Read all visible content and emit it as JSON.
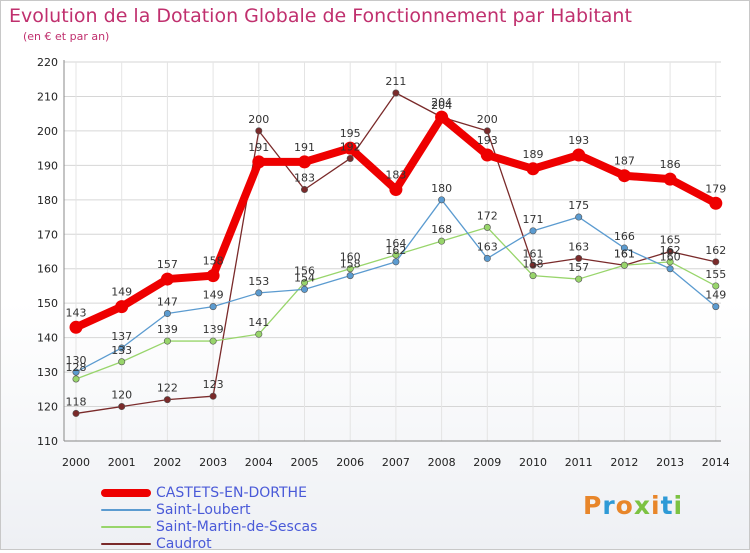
{
  "header": {
    "title": "Evolution de la Dotation Globale de Fonctionnement par Habitant",
    "subtitle": "(en € et par an)"
  },
  "brand": {
    "logo_text": "Proxiti",
    "logo_colors": [
      "#e8862a",
      "#2e9ad6",
      "#e8862a",
      "#7cc242",
      "#e8862a",
      "#2e9ad6",
      "#7cc242"
    ]
  },
  "chart_data": {
    "type": "line",
    "title": "Evolution de la Dotation Globale de Fonctionnement par Habitant",
    "subtitle": "(en € et par an)",
    "xlabel": "",
    "ylabel": "",
    "x": [
      "2000",
      "2001",
      "2002",
      "2003",
      "2004",
      "2005",
      "2006",
      "2007",
      "2008",
      "2009",
      "2010",
      "2011",
      "2012",
      "2013",
      "2014"
    ],
    "ylim": [
      110,
      220
    ],
    "yticks": [
      110,
      120,
      130,
      140,
      150,
      160,
      170,
      180,
      190,
      200,
      210,
      220
    ],
    "grid": true,
    "legend_position": "bottom-left",
    "series": [
      {
        "name": "CASTETS-EN-DORTHE",
        "color": "#ee0000",
        "values": [
          143,
          149,
          157,
          158,
          191,
          191,
          195,
          183,
          204,
          193,
          189,
          193,
          187,
          186,
          179
        ]
      },
      {
        "name": "Saint-Loubert",
        "color": "#5b9bd0",
        "values": [
          130,
          137,
          147,
          149,
          153,
          154,
          158,
          162,
          180,
          163,
          171,
          175,
          166,
          160,
          149
        ]
      },
      {
        "name": "Saint-Martin-de-Sescas",
        "color": "#98d56b",
        "values": [
          128,
          133,
          139,
          139,
          141,
          156,
          160,
          164,
          168,
          172,
          158,
          157,
          161,
          162,
          155
        ]
      },
      {
        "name": "Caudrot",
        "color": "#7a2a2a",
        "values": [
          118,
          120,
          122,
          123,
          200,
          183,
          192,
          211,
          204,
          200,
          161,
          163,
          161,
          165,
          162
        ]
      }
    ]
  }
}
